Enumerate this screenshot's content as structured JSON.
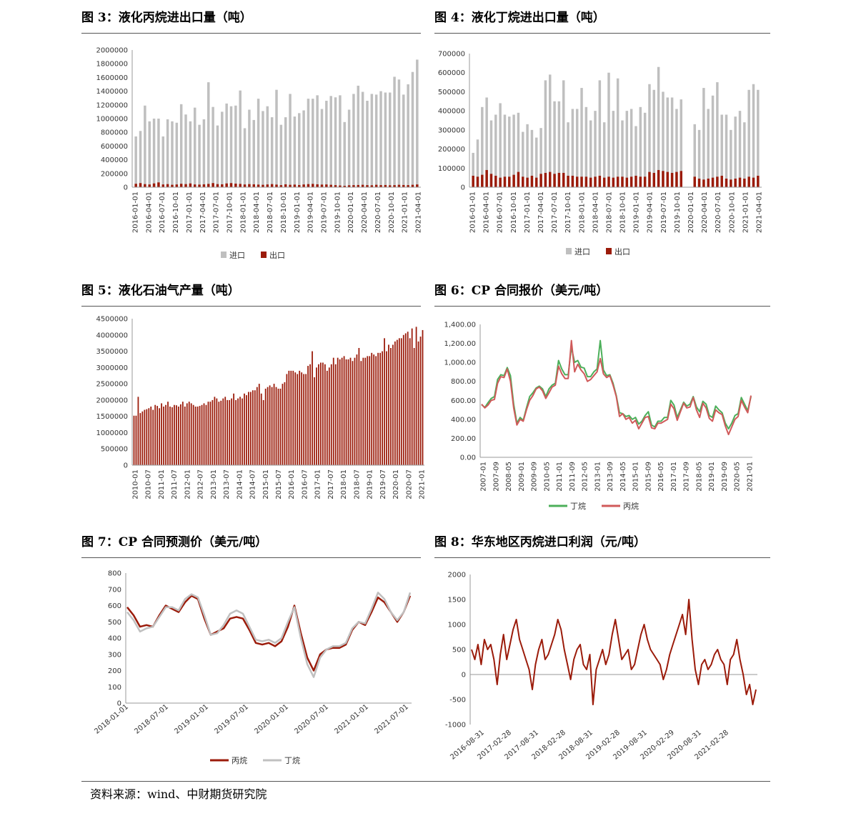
{
  "footer": {
    "source": "资料来源：wind、中财期货研究院"
  },
  "chart_data": [
    {
      "id": "fig3",
      "type": "bar",
      "title": "图 3：液化丙烷进出口量（吨）",
      "xlabel": "",
      "ylabel": "",
      "ylim": [
        0,
        2000000
      ],
      "yticks": [
        "2000000",
        "1800000",
        "1600000",
        "1400000",
        "1200000",
        "1000000",
        "800000",
        "600000",
        "400000",
        "200000",
        "0"
      ],
      "xticks": [
        "2016-01-01",
        "2016-04-01",
        "2016-07-01",
        "2016-10-01",
        "2017-01-01",
        "2017-04-01",
        "2017-07-01",
        "2017-10-01",
        "2018-01-01",
        "2018-04-01",
        "2018-07-01",
        "2018-10-01",
        "2019-01-01",
        "2019-04-01",
        "2019-07-01",
        "2019-10-01",
        "2020-01-01",
        "2020-04-01",
        "2020-07-01",
        "2020-10-01",
        "2021-01-01",
        "2021-04-01"
      ],
      "legend_position": "bottom",
      "colors": {
        "进口": "#bfbfbf",
        "出口": "#9b1b0a"
      },
      "series": [
        {
          "name": "进口",
          "values": [
            740000,
            820000,
            1190000,
            960000,
            1000000,
            1000000,
            740000,
            990000,
            960000,
            940000,
            1210000,
            1060000,
            960000,
            1160000,
            910000,
            990000,
            1530000,
            1170000,
            900000,
            1100000,
            1220000,
            1180000,
            1190000,
            1410000,
            860000,
            1130000,
            980000,
            1290000,
            1110000,
            1180000,
            1020000,
            1420000,
            910000,
            1020000,
            1360000,
            1030000,
            1080000,
            1120000,
            1290000,
            1290000,
            1340000,
            1140000,
            1260000,
            1330000,
            1310000,
            1340000,
            950000,
            1130000,
            1360000,
            1480000,
            1390000,
            1260000,
            1360000,
            1350000,
            1400000,
            1380000,
            1380000,
            1610000,
            1570000,
            1350000,
            1500000,
            1680000,
            1860000
          ]
        },
        {
          "name": "出口",
          "values": [
            50000,
            60000,
            45000,
            40000,
            55000,
            70000,
            40000,
            45000,
            35000,
            40000,
            50000,
            45000,
            55000,
            40000,
            38000,
            42000,
            48000,
            60000,
            45000,
            42000,
            55000,
            60000,
            52000,
            48000,
            40000,
            45000,
            42000,
            38000,
            35000,
            40000,
            45000,
            38000,
            30000,
            42000,
            35000,
            38000,
            32000,
            40000,
            45000,
            48000,
            42000,
            38000,
            40000,
            35000,
            30000,
            25000,
            20000,
            28000,
            30000,
            32000,
            35000,
            30000,
            28000,
            35000,
            30000,
            32000,
            28000,
            30000,
            35000,
            32000,
            30000,
            35000,
            40000
          ]
        }
      ]
    },
    {
      "id": "fig4",
      "type": "bar",
      "title": "图 4：液化丁烷进出口量（吨）",
      "xlabel": "",
      "ylabel": "",
      "ylim": [
        0,
        700000
      ],
      "yticks": [
        "700000",
        "600000",
        "500000",
        "400000",
        "300000",
        "200000",
        "100000",
        "0"
      ],
      "xticks": [
        "2016-01-01",
        "2016-04-01",
        "2016-07-01",
        "2016-10-01",
        "2017-01-01",
        "2017-04-01",
        "2017-07-01",
        "2017-10-01",
        "2018-01-01",
        "2018-04-01",
        "2018-07-01",
        "2018-10-01",
        "2019-01-01",
        "2019-04-01",
        "2019-07-01",
        "2019-10-01",
        "2020-01-01",
        "2020-04-01",
        "2020-07-01",
        "2020-10-01",
        "2021-01-01",
        "2021-04-01"
      ],
      "legend_position": "bottom",
      "colors": {
        "进口": "#bfbfbf",
        "出口": "#9b1b0a"
      },
      "series": [
        {
          "name": "进口",
          "values": [
            180000,
            250000,
            420000,
            470000,
            350000,
            380000,
            440000,
            380000,
            370000,
            380000,
            390000,
            290000,
            330000,
            300000,
            260000,
            310000,
            560000,
            590000,
            450000,
            450000,
            560000,
            340000,
            410000,
            410000,
            520000,
            420000,
            350000,
            400000,
            560000,
            340000,
            600000,
            400000,
            570000,
            350000,
            400000,
            410000,
            320000,
            420000,
            390000,
            540000,
            510000,
            630000,
            500000,
            470000,
            470000,
            410000,
            460000,
            0,
            0,
            330000,
            300000,
            520000,
            410000,
            480000,
            550000,
            380000,
            380000,
            300000,
            370000,
            400000,
            340000,
            510000,
            540000,
            510000
          ]
        },
        {
          "name": "出口",
          "values": [
            60000,
            55000,
            65000,
            90000,
            70000,
            60000,
            50000,
            55000,
            55000,
            65000,
            80000,
            55000,
            50000,
            60000,
            50000,
            70000,
            75000,
            80000,
            70000,
            75000,
            75000,
            60000,
            60000,
            55000,
            55000,
            55000,
            50000,
            55000,
            60000,
            50000,
            55000,
            50000,
            55000,
            55000,
            50000,
            55000,
            60000,
            55000,
            55000,
            80000,
            75000,
            90000,
            85000,
            80000,
            75000,
            80000,
            85000,
            0,
            0,
            55000,
            45000,
            40000,
            45000,
            50000,
            55000,
            60000,
            45000,
            40000,
            45000,
            50000,
            45000,
            55000,
            50000,
            60000
          ]
        }
      ]
    },
    {
      "id": "fig5",
      "type": "bar",
      "title": "图 5：液化石油气产量（吨）",
      "xlabel": "",
      "ylabel": "",
      "ylim": [
        0,
        4500000
      ],
      "yticks": [
        "4500000",
        "4000000",
        "3500000",
        "3000000",
        "2500000",
        "2000000",
        "1500000",
        "1000000",
        "500000",
        "0"
      ],
      "xticks": [
        "2010-01",
        "2010-07",
        "2011-01",
        "2011-07",
        "2012-01",
        "2012-07",
        "2013-01",
        "2013-07",
        "2014-01",
        "2014-07",
        "2015-01",
        "2015-07",
        "2016-01",
        "2016-07",
        "2017-01",
        "2017-07",
        "2018-01",
        "2018-07",
        "2019-01",
        "2019-07",
        "2020-01",
        "2020-07",
        "2021-01"
      ],
      "color": "#9b1b0a",
      "start": "2010-01",
      "values": [
        1520000,
        1520000,
        2100000,
        1600000,
        1650000,
        1700000,
        1720000,
        1750000,
        1800000,
        1700000,
        1850000,
        1820000,
        1750000,
        1900000,
        1800000,
        1850000,
        1950000,
        1800000,
        1780000,
        1850000,
        1840000,
        1800000,
        1870000,
        1950000,
        1800000,
        1900000,
        1950000,
        1900000,
        1850000,
        1800000,
        1800000,
        1820000,
        1850000,
        1900000,
        1850000,
        1950000,
        1950000,
        2000000,
        2100000,
        2050000,
        1950000,
        1980000,
        2050000,
        2100000,
        2000000,
        2000000,
        2050000,
        2200000,
        2000000,
        2050000,
        2100000,
        2050000,
        2200000,
        2150000,
        2250000,
        2250000,
        2300000,
        2300000,
        2400000,
        2500000,
        2200000,
        2000000,
        2350000,
        2400000,
        2450000,
        2400000,
        2500000,
        2400000,
        2350000,
        2350000,
        2500000,
        2550000,
        2800000,
        2900000,
        2900000,
        2900000,
        2850000,
        2800000,
        2900000,
        2850000,
        2800000,
        2800000,
        3050000,
        3100000,
        3500000,
        2700000,
        3000000,
        3100000,
        3150000,
        3150000,
        3100000,
        2900000,
        3000000,
        3100000,
        3300000,
        3100000,
        3300000,
        3250000,
        3300000,
        3350000,
        3250000,
        3250000,
        3300000,
        3200000,
        3300000,
        3400000,
        3600000,
        3200000,
        3300000,
        3300000,
        3350000,
        3350000,
        3450000,
        3400000,
        3350000,
        3450000,
        3450000,
        3500000,
        3900000,
        3500000,
        3700000,
        3600000,
        3700000,
        3800000,
        3850000,
        3900000,
        3900000,
        4000000,
        4050000,
        4100000,
        3900000,
        4200000,
        3600000,
        4250000,
        3800000,
        3950000,
        4150000
      ]
    },
    {
      "id": "fig6",
      "type": "line",
      "title": "图 6：CP 合同报价（美元/吨）",
      "xlabel": "",
      "ylabel": "",
      "ylim": [
        0,
        1400
      ],
      "yticks": [
        "1,400.00",
        "1,200.00",
        "1,000.00",
        "800.00",
        "600.00",
        "400.00",
        "200.00",
        "0.00"
      ],
      "xticks": [
        "2007-01",
        "2007-09",
        "2008-05",
        "2009-01",
        "2009-09",
        "2010-05",
        "2011-01",
        "2011-09",
        "2012-05",
        "2013-01",
        "2013-09",
        "2014-05",
        "2015-01",
        "2015-09",
        "2016-05",
        "2017-01",
        "2017-09",
        "2018-05",
        "2019-01",
        "2019-09",
        "2020-05",
        "2021-01"
      ],
      "legend_position": "bottom",
      "colors": {
        "丁烷": "#4caf5a",
        "丙烷": "#d05a5a"
      },
      "series": [
        {
          "name": "丁烷",
          "values": [
            555,
            525,
            575,
            620,
            640,
            820,
            870,
            860,
            945,
            860,
            560,
            360,
            420,
            390,
            520,
            640,
            680,
            730,
            750,
            720,
            640,
            720,
            760,
            780,
            1020,
            930,
            870,
            870,
            1160,
            1000,
            1020,
            950,
            940,
            850,
            850,
            900,
            930,
            1230,
            920,
            860,
            870,
            780,
            650,
            470,
            460,
            430,
            440,
            400,
            420,
            350,
            380,
            440,
            480,
            340,
            320,
            380,
            380,
            420,
            420,
            600,
            550,
            420,
            500,
            580,
            540,
            560,
            640,
            530,
            480,
            590,
            560,
            440,
            420,
            540,
            500,
            470,
            360,
            300,
            360,
            440,
            460,
            630,
            560,
            490,
            640
          ]
        },
        {
          "name": "丙烷",
          "values": [
            560,
            520,
            550,
            600,
            610,
            780,
            850,
            840,
            930,
            800,
            520,
            340,
            400,
            380,
            500,
            600,
            650,
            720,
            740,
            700,
            620,
            680,
            740,
            760,
            960,
            880,
            830,
            830,
            1230,
            900,
            980,
            920,
            880,
            800,
            820,
            860,
            900,
            1040,
            880,
            840,
            860,
            760,
            640,
            430,
            460,
            400,
            420,
            360,
            390,
            300,
            360,
            420,
            430,
            310,
            300,
            360,
            360,
            380,
            400,
            560,
            510,
            390,
            480,
            570,
            520,
            530,
            630,
            500,
            420,
            570,
            520,
            410,
            380,
            500,
            470,
            450,
            330,
            240,
            320,
            400,
            430,
            600,
            530,
            470,
            650
          ]
        }
      ]
    },
    {
      "id": "fig7",
      "type": "line",
      "title": "图 7：CP 合同预测价（美元/吨）",
      "xlabel": "",
      "ylabel": "",
      "ylim": [
        0,
        800
      ],
      "yticks": [
        "800",
        "700",
        "600",
        "500",
        "400",
        "300",
        "200",
        "100",
        "0"
      ],
      "xticks": [
        "2018-01-01",
        "2018-07-01",
        "2019-01-01",
        "2019-07-01",
        "2020-01-01",
        "2020-07-01",
        "2021-01-01",
        "2021-07-01"
      ],
      "legend_position": "bottom",
      "colors": {
        "丙烷": "#9b1b0a",
        "丁烷": "#c0c0c0"
      },
      "series": [
        {
          "name": "丙烷",
          "values": [
            590,
            540,
            470,
            480,
            470,
            540,
            600,
            580,
            560,
            620,
            660,
            640,
            520,
            420,
            440,
            460,
            520,
            530,
            520,
            450,
            370,
            360,
            370,
            350,
            380,
            470,
            600,
            430,
            280,
            200,
            300,
            330,
            340,
            340,
            360,
            450,
            500,
            480,
            560,
            650,
            620,
            560,
            500,
            560,
            660
          ]
        },
        {
          "name": "丁烷",
          "values": [
            560,
            510,
            440,
            460,
            470,
            530,
            590,
            590,
            570,
            640,
            670,
            650,
            540,
            420,
            430,
            480,
            550,
            570,
            550,
            470,
            390,
            380,
            390,
            370,
            400,
            500,
            590,
            400,
            240,
            160,
            280,
            330,
            350,
            350,
            370,
            460,
            500,
            490,
            580,
            680,
            640,
            560,
            510,
            560,
            680
          ]
        }
      ]
    },
    {
      "id": "fig8",
      "type": "line",
      "title": "图 8：华东地区丙烷进口利润（元/吨）",
      "xlabel": "",
      "ylabel": "",
      "ylim": [
        -1000,
        2000
      ],
      "yticks": [
        "2000",
        "1500",
        "1000",
        "500",
        "0",
        "-500",
        "-1000"
      ],
      "xticks": [
        "2016-08-31",
        "2017-02-28",
        "2017-08-31",
        "2018-02-28",
        "2018-08-31",
        "2019-02-28",
        "2019-08-31",
        "2020-02-29",
        "2020-08-31",
        "2021-02-28"
      ],
      "legend_position": "none",
      "colors": {
        "line": "#9b1b0a"
      },
      "series": [
        {
          "name": "",
          "values": [
            500,
            300,
            600,
            200,
            700,
            500,
            600,
            300,
            -200,
            400,
            800,
            300,
            600,
            900,
            1100,
            700,
            500,
            300,
            100,
            -300,
            200,
            500,
            700,
            300,
            400,
            600,
            800,
            1100,
            900,
            500,
            200,
            -100,
            300,
            500,
            600,
            200,
            100,
            400,
            -600,
            100,
            300,
            500,
            200,
            400,
            800,
            1100,
            700,
            300,
            400,
            500,
            100,
            200,
            500,
            800,
            1000,
            700,
            500,
            400,
            300,
            200,
            -100,
            100,
            400,
            600,
            800,
            1000,
            1200,
            800,
            1500,
            700,
            100,
            -200,
            200,
            300,
            100,
            200,
            400,
            500,
            300,
            200,
            -200,
            300,
            400,
            700,
            300,
            0,
            -400,
            -200,
            -600,
            -300
          ]
        }
      ]
    }
  ]
}
